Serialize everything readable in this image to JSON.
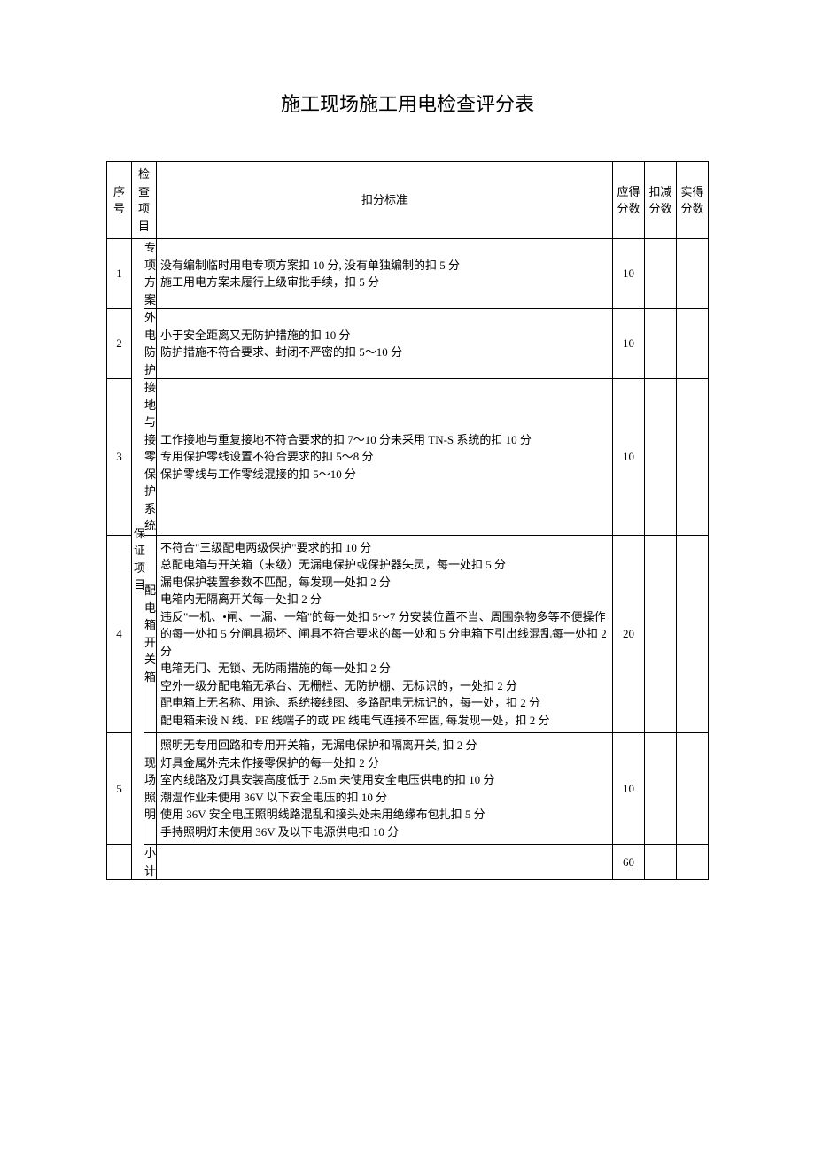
{
  "title": "施工现场施工用电检查评分表",
  "headers": {
    "seq": "序号",
    "checkItem": "检查项目",
    "standard": "扣分标准",
    "shouldScore": "应得分数",
    "deductScore": "扣减分数",
    "actualScore": "实得分数"
  },
  "category": "保证项目",
  "rows": [
    {
      "seq": "1",
      "item": "专项方案",
      "standard": "没有编制临时用电专项方案扣 10 分, 没有单独编制的扣 5 分\n施工用电方案未履行上级审批手续，扣 5 分",
      "shouldScore": "10",
      "deductScore": "",
      "actualScore": ""
    },
    {
      "seq": "2",
      "item": "外电防护",
      "standard": "小于安全距离又无防护措施的扣 10 分\n防护措施不符合要求、封闭不严密的扣 5～10 分",
      "shouldScore": "10",
      "deductScore": "",
      "actualScore": ""
    },
    {
      "seq": "3",
      "item": "接地与接零保护系统",
      "standard": "工作接地与重复接地不符合要求的扣 7～10 分未采用 TN-S 系统的扣 10 分\n专用保护零线设置不符合要求的扣 5～8 分\n保护零线与工作零线混接的扣 5～10 分",
      "shouldScore": "10",
      "deductScore": "",
      "actualScore": ""
    },
    {
      "seq": "4",
      "item": "配电箱开关箱",
      "standard": "不符合\"三级配电两级保护\"要求的扣 10 分\n总配电箱与开关箱（末级）无漏电保护或保护器失灵，每一处扣 5 分\n漏电保护装置参数不匹配，每发现一处扣 2 分\n电箱内无隔离开关每一处扣 2 分\n违反\"一机、•闸、一漏、一箱\"的每一处扣 5～7 分安装位置不当、周围杂物多等不便操作的每一处扣 5 分闸具损坏、闸具不符合要求的每一处和 5 分电箱下引出线混乱每一处扣 2 分\n电箱无门、无锁、无防雨措施的每一处扣 2 分\n空外一级分配电箱无承台、无栅栏、无防护棚、无标识的，一处扣 2 分\n配电箱上无名称、用途、系统接线图、多路配电无标记的，每一处，扣 2 分\n配电箱未设 N 线、PE 线端子的或 PE 线电气连接不牢固, 每发现一处，扣 2 分",
      "shouldScore": "20",
      "deductScore": "",
      "actualScore": ""
    },
    {
      "seq": "5",
      "item": "现场照明",
      "standard": "照明无专用回路和专用开关箱，无漏电保护和隔离开关, 扣 2 分\n灯具金属外壳未作接零保护的每一处扣 2 分\n室内线路及灯具安装高度低于 2.5m 未使用安全电压供电的扣 10 分\n潮湿作业未使用 36V 以下安全电压的扣 10 分\n使用 36V 安全电压照明线路混乱和接头处未用绝缘布包扎扣 5 分\n手持照明灯未使用 36V 及以下电源供电扣 10 分",
      "shouldScore": "10",
      "deductScore": "",
      "actualScore": ""
    }
  ],
  "subtotal": {
    "label": "小计",
    "shouldScore": "60",
    "deductScore": "",
    "actualScore": ""
  }
}
